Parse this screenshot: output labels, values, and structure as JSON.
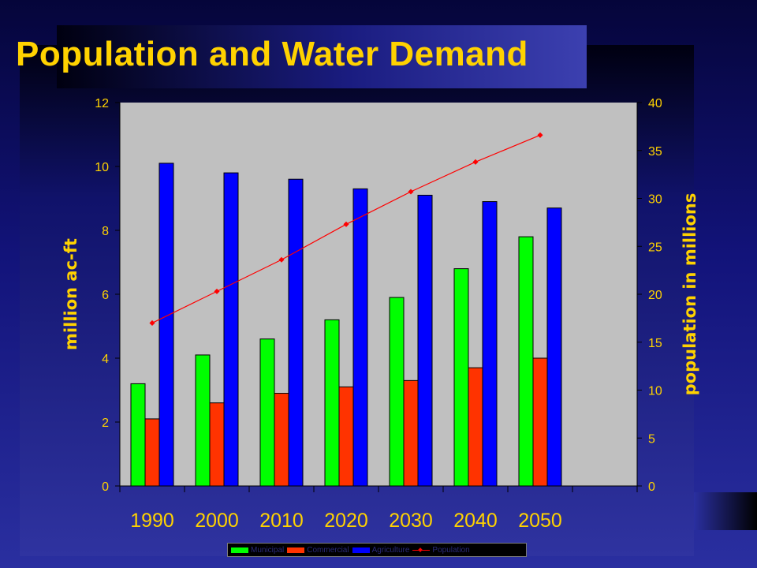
{
  "title": "Population and Water Demand",
  "colors": {
    "municipal": "#00ff00",
    "commercial": "#ff3300",
    "agriculture": "#0000ff",
    "population": "#ff0000",
    "plot_bg": "#c0c0c0",
    "title": "#ffd200",
    "axis_text": "#ffd200",
    "decade_text": "#ffd200"
  },
  "chart_data": {
    "type": "bar",
    "categories": [
      "1990",
      "2000",
      "2010",
      "2020",
      "2030",
      "2040",
      "2050"
    ],
    "series": [
      {
        "name": "Municipal",
        "type": "bar",
        "axis": "left",
        "values": [
          3.2,
          4.1,
          4.6,
          5.2,
          5.9,
          6.8,
          7.8
        ]
      },
      {
        "name": "Commercial",
        "type": "bar",
        "axis": "left",
        "values": [
          2.1,
          2.6,
          2.9,
          3.1,
          3.3,
          3.7,
          4.0
        ]
      },
      {
        "name": "Agriculture",
        "type": "bar",
        "axis": "left",
        "values": [
          10.1,
          9.8,
          9.6,
          9.3,
          9.1,
          8.9,
          8.7
        ]
      },
      {
        "name": "Population",
        "type": "line",
        "axis": "right",
        "values": [
          17.0,
          20.3,
          23.6,
          27.3,
          30.7,
          33.8,
          36.6
        ]
      }
    ],
    "ylabel": "million ac-ft",
    "ylabel_right": "population in millions",
    "ylim": [
      0,
      12
    ],
    "ylim_right": [
      0,
      40
    ],
    "yticks": [
      "0",
      "2",
      "4",
      "6",
      "8",
      "10",
      "12"
    ],
    "yticks_right": [
      "0",
      "5",
      "10",
      "15",
      "20",
      "25",
      "30",
      "35",
      "40"
    ],
    "legend": [
      "Municipal",
      "Commercial",
      "Agriculture",
      "Population"
    ],
    "legend_position": "bottom",
    "grid": false
  }
}
